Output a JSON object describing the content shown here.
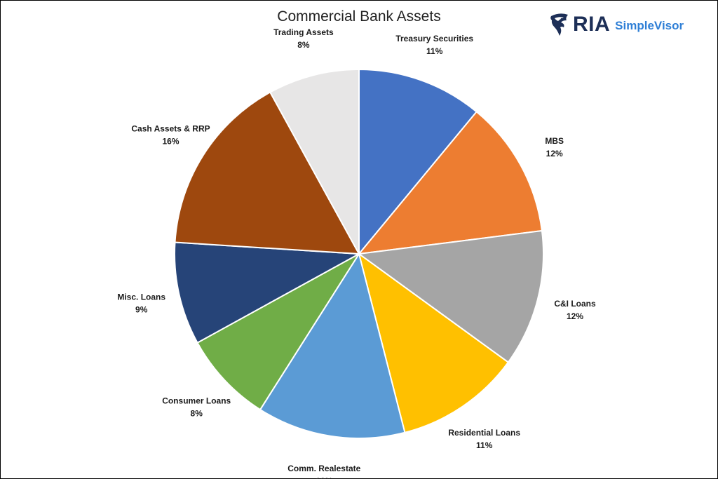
{
  "chart_data": {
    "type": "pie",
    "title": "Commercial Bank Assets",
    "slices": [
      {
        "label": "Treasury Securities",
        "value": 11,
        "percent_label": "11%",
        "color": "#4472C4"
      },
      {
        "label": "MBS",
        "value": 12,
        "percent_label": "12%",
        "color": "#ED7D31"
      },
      {
        "label": "C&I Loans",
        "value": 12,
        "percent_label": "12%",
        "color": "#A5A5A5"
      },
      {
        "label": "Residential Loans",
        "value": 11,
        "percent_label": "11%",
        "color": "#FFC000"
      },
      {
        "label": "Comm. Realestate",
        "value": 13,
        "percent_label": "13%",
        "color": "#5B9BD5"
      },
      {
        "label": "Consumer Loans",
        "value": 8,
        "percent_label": "8%",
        "color": "#70AD47"
      },
      {
        "label": "Misc. Loans",
        "value": 9,
        "percent_label": "9%",
        "color": "#264478"
      },
      {
        "label": "Cash Assets & RRP",
        "value": 16,
        "percent_label": "16%",
        "color": "#9E480E"
      },
      {
        "label": "Trading Assets",
        "value": 8,
        "percent_label": "8%",
        "color": "#E7E6E6"
      }
    ],
    "start_angle_deg": 0,
    "direction": "clockwise",
    "legend": "none"
  },
  "logo": {
    "ria": "RIA",
    "simplevisor": "SimpleVisor",
    "colors": {
      "mark": "#1d2f57",
      "ria": "#1d2f57",
      "simplevisor": "#2f7fd6"
    }
  }
}
